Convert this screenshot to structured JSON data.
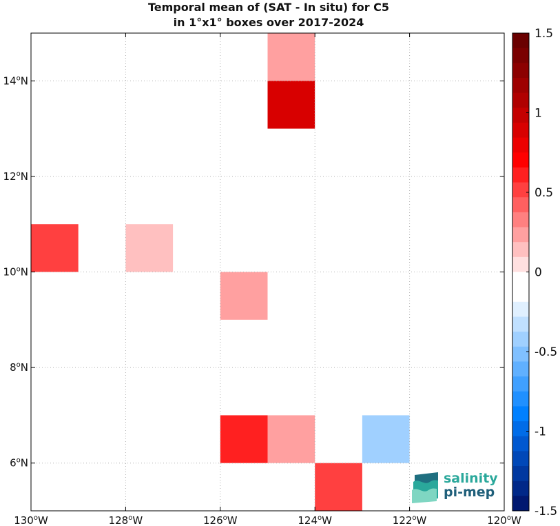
{
  "chart_data": {
    "type": "heatmap",
    "title_line1": "Temporal mean of (SAT - In situ) for C5",
    "title_line2": "in 1°x1° boxes over 2017-2024",
    "xlim": [
      -130,
      -120
    ],
    "ylim": [
      5,
      15
    ],
    "xticks": [
      {
        "value": -130,
        "label": "130°W"
      },
      {
        "value": -128,
        "label": "128°W"
      },
      {
        "value": -126,
        "label": "126°W"
      },
      {
        "value": -124,
        "label": "124°W"
      },
      {
        "value": -122,
        "label": "122°W"
      },
      {
        "value": -120,
        "label": "120°W"
      }
    ],
    "yticks": [
      {
        "value": 6,
        "label": "6°N"
      },
      {
        "value": 8,
        "label": "8°N"
      },
      {
        "value": 10,
        "label": "10°N"
      },
      {
        "value": 12,
        "label": "12°N"
      },
      {
        "value": 14,
        "label": "14°N"
      }
    ],
    "grid": true,
    "cells": [
      {
        "lon": -125,
        "lat": 14,
        "value": 0.25
      },
      {
        "lon": -125,
        "lat": 13,
        "value": 0.85
      },
      {
        "lon": -130,
        "lat": 10,
        "value": 0.5
      },
      {
        "lon": -128,
        "lat": 10,
        "value": 0.12
      },
      {
        "lon": -128,
        "lat": 9,
        "value": -0.1
      },
      {
        "lon": -126,
        "lat": 9,
        "value": 0.25
      },
      {
        "lon": -126,
        "lat": 6,
        "value": 0.65
      },
      {
        "lon": -125,
        "lat": 6,
        "value": 0.25
      },
      {
        "lon": -123,
        "lat": 6,
        "value": -0.4
      },
      {
        "lon": -124,
        "lat": 5,
        "value": 0.5
      }
    ],
    "colorbar": {
      "range": [
        -1.5,
        1.5
      ],
      "ticks": [
        {
          "value": 1.5,
          "label": "1.5"
        },
        {
          "value": 1,
          "label": "1"
        },
        {
          "value": 0.5,
          "label": "0.5"
        },
        {
          "value": 0,
          "label": "0"
        },
        {
          "value": -0.5,
          "label": "-0.5"
        },
        {
          "value": -1,
          "label": "-1"
        },
        {
          "value": -1.5,
          "label": "-1.5"
        }
      ],
      "colors_top_to_bottom": [
        "#6a0000",
        "#7a0000",
        "#8c0000",
        "#9e0000",
        "#b00000",
        "#c40000",
        "#d80000",
        "#ec0000",
        "#ff0000",
        "#ff2020",
        "#ff4040",
        "#ff6060",
        "#ff8080",
        "#ffa0a0",
        "#ffc0c0",
        "#ffe0e0",
        "#ffffff",
        "#ffffff",
        "#e0f0ff",
        "#c0e0ff",
        "#a0d0ff",
        "#80c0ff",
        "#60b0ff",
        "#40a0ff",
        "#2090ff",
        "#0080ff",
        "#006ce8",
        "#0058d0",
        "#0048b8",
        "#0038a0",
        "#002888",
        "#001870"
      ]
    }
  },
  "logo": {
    "line1": "salinity",
    "line2": "pi-mep"
  }
}
